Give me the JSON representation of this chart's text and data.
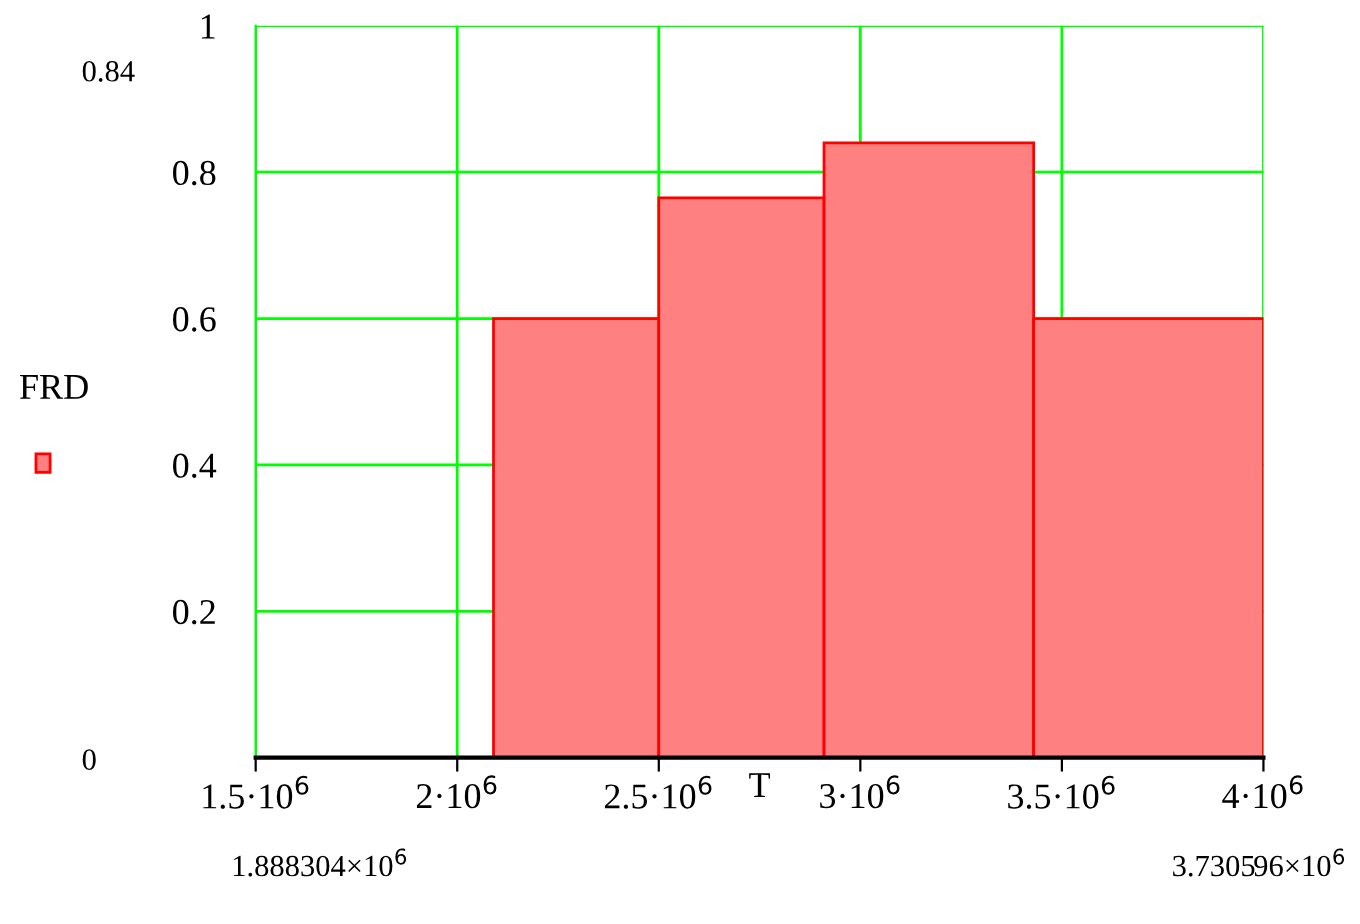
{
  "chart_data": {
    "type": "histogram",
    "xlabel": "T",
    "ylabel": "FRD",
    "bins": [
      2090000,
      2500000,
      2910000,
      3430000,
      4000000
    ],
    "values": [
      0.6,
      0.765,
      0.84,
      0.6
    ],
    "color": "#ff8080",
    "xlim": [
      1500000,
      4000000
    ],
    "xticks": [
      {
        "value": 1500000,
        "label": "1.5·10$^{6}$"
      },
      {
        "value": 2000000,
        "label": "2·10$^{6}$"
      },
      {
        "value": 2500000,
        "label": "2.5·10$^{6}$"
      },
      {
        "value": 3000000,
        "label": "3·10$^{6}$"
      },
      {
        "value": 3500000,
        "label": "3.5·10$^{6}$"
      },
      {
        "value": 4000000,
        "label": "4·10$^{6}$"
      }
    ],
    "ylim": [
      0,
      1
    ],
    "yticks": [
      0.2,
      0.4,
      0.6,
      0.8,
      1
    ],
    "grid": true,
    "annotations": [
      "0.84",
      "0",
      "1.888304×10$^{6}$",
      "3.730596×10$^{6}$"
    ]
  }
}
